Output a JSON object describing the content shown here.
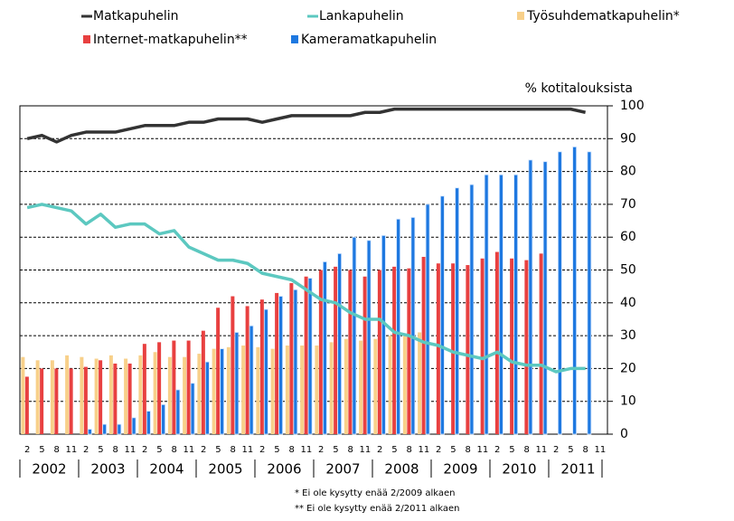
{
  "chart_data": {
    "type": "bar",
    "y_label": "% kotitalouksista",
    "categories": [
      "2",
      "5",
      "8",
      "11",
      "2",
      "5",
      "8",
      "11",
      "2",
      "5",
      "8",
      "11",
      "2",
      "5",
      "8",
      "11",
      "2",
      "5",
      "8",
      "11",
      "2",
      "5",
      "8",
      "11",
      "2",
      "5",
      "8",
      "11",
      "2",
      "5",
      "8",
      "11",
      "2",
      "5",
      "8",
      "11",
      "2",
      "5",
      "8",
      "11"
    ],
    "years": [
      "2002",
      "2003",
      "2004",
      "2005",
      "2006",
      "2007",
      "2008",
      "2009",
      "2010",
      "2011"
    ],
    "series": [
      {
        "name": "Matkapuhelin",
        "type": "line",
        "color": "#333333",
        "values": [
          90,
          91,
          89,
          91,
          92,
          92,
          92,
          93,
          94,
          94,
          94,
          95,
          95,
          96,
          96,
          96,
          95,
          96,
          97,
          97,
          97,
          97,
          97,
          98,
          98,
          99,
          99,
          99,
          99,
          99,
          99,
          99,
          99,
          99,
          99,
          99,
          99,
          99,
          98,
          null
        ]
      },
      {
        "name": "Lankapuhelin",
        "type": "line",
        "color": "#5cc8c0",
        "values": [
          69,
          70,
          69,
          68,
          64,
          67,
          63,
          64,
          64,
          61,
          62,
          57,
          55,
          53,
          53,
          52,
          49,
          48,
          47,
          44,
          41,
          40,
          37,
          35,
          35,
          31,
          30,
          28,
          27,
          25,
          24,
          23,
          25,
          22,
          21,
          21,
          19,
          20,
          20,
          null
        ]
      },
      {
        "name": "Työsuhdematkapuhelin*",
        "type": "bar",
        "color": "#f8d08a",
        "values": [
          23.5,
          22.5,
          22.5,
          24,
          23.5,
          23,
          24,
          23,
          24,
          25,
          23.5,
          23.5,
          24.5,
          26,
          26.5,
          27,
          26.5,
          26,
          27,
          27,
          27,
          28,
          29,
          28.5,
          29,
          30,
          30,
          31,
          null,
          null,
          null,
          null,
          null,
          null,
          null,
          null,
          null,
          null,
          null,
          null
        ]
      },
      {
        "name": "Internet-matkapuhelin**",
        "type": "bar",
        "color": "#e84040",
        "values": [
          17.5,
          20,
          20,
          20,
          20.5,
          22.5,
          21.5,
          21.5,
          27.5,
          28,
          28.5,
          28.5,
          31.5,
          38.5,
          42,
          39,
          41,
          43,
          46,
          48,
          50,
          51,
          50,
          48,
          50,
          51,
          50.5,
          54,
          52,
          52,
          51.5,
          53.5,
          55.5,
          53.5,
          53,
          55,
          null,
          null,
          null,
          null
        ]
      },
      {
        "name": "Kameramatkapuhelin",
        "type": "bar",
        "color": "#1e78e0",
        "values": [
          null,
          null,
          null,
          null,
          1.5,
          3,
          3,
          5,
          7,
          9,
          13.5,
          15.5,
          22,
          26,
          31,
          33,
          38,
          42,
          44,
          47.5,
          52.5,
          55,
          60,
          59,
          60.5,
          65.5,
          66,
          70,
          72.5,
          75,
          76,
          79,
          79,
          79,
          83.5,
          83,
          86,
          87.5,
          86,
          null
        ]
      }
    ],
    "ylim": [
      0,
      100
    ],
    "yticks": [
      0,
      10,
      20,
      30,
      40,
      50,
      60,
      70,
      80,
      90,
      100
    ],
    "grid": true,
    "notes": [
      "* Ei ole kysytty enää 2/2009 alkaen",
      "** Ei ole kysytty enää 2/2011 alkaen"
    ]
  }
}
